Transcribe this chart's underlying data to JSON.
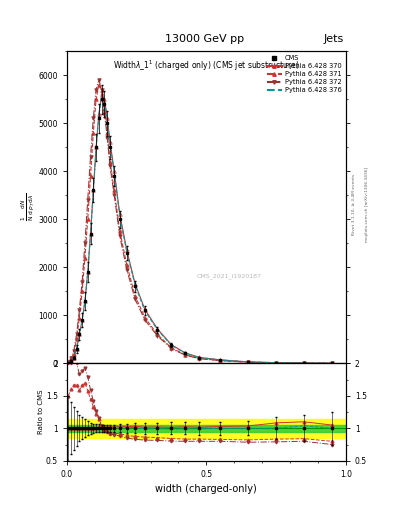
{
  "title_top": "13000 GeV pp",
  "title_right": "Jets",
  "plot_title": "Widthλ_1¹ (charged only) (CMS jet substructure)",
  "xlabel": "width (charged-only)",
  "ylabel_ratio": "Ratio to CMS",
  "right_label_1": "Rivet 3.1.10, ≥ 3.4M events",
  "right_label_2": "mcplots.cern.ch [arXiv:1306.3436]",
  "watermark": "CMS_2021_I1920187",
  "x_bins": [
    0.0,
    0.01,
    0.02,
    0.03,
    0.04,
    0.05,
    0.06,
    0.07,
    0.08,
    0.09,
    0.1,
    0.11,
    0.12,
    0.13,
    0.14,
    0.15,
    0.16,
    0.18,
    0.2,
    0.23,
    0.26,
    0.3,
    0.35,
    0.4,
    0.45,
    0.5,
    0.6,
    0.7,
    0.8,
    0.9,
    1.0
  ],
  "cms_values": [
    10,
    50,
    120,
    300,
    600,
    900,
    1300,
    1900,
    2700,
    3600,
    4500,
    5100,
    5500,
    5400,
    5000,
    4500,
    3900,
    3000,
    2300,
    1600,
    1100,
    700,
    380,
    210,
    120,
    70,
    28,
    12,
    5,
    2
  ],
  "cms_errors": [
    5,
    20,
    40,
    80,
    120,
    150,
    180,
    200,
    220,
    250,
    280,
    300,
    300,
    280,
    260,
    240,
    210,
    180,
    150,
    120,
    90,
    60,
    35,
    20,
    12,
    7,
    3,
    2,
    1,
    0.5
  ],
  "py370_values": [
    10,
    50,
    120,
    300,
    600,
    900,
    1300,
    1900,
    2700,
    3600,
    4500,
    5200,
    5600,
    5500,
    5100,
    4600,
    4000,
    3100,
    2350,
    1650,
    1120,
    715,
    385,
    215,
    122,
    72,
    29,
    13,
    5.5,
    2.1
  ],
  "py371_values": [
    15,
    80,
    200,
    500,
    950,
    1500,
    2200,
    3000,
    3900,
    4800,
    5500,
    5800,
    5700,
    5300,
    4800,
    4200,
    3600,
    2750,
    2050,
    1400,
    950,
    600,
    320,
    175,
    100,
    58,
    23,
    10,
    4.2,
    1.6
  ],
  "py372_values": [
    20,
    100,
    250,
    600,
    1100,
    1700,
    2500,
    3400,
    4300,
    5100,
    5700,
    5900,
    5700,
    5200,
    4700,
    4100,
    3500,
    2650,
    1950,
    1330,
    900,
    570,
    305,
    168,
    96,
    56,
    22,
    9.5,
    4.0,
    1.5
  ],
  "py376_values": [
    10,
    50,
    118,
    295,
    592,
    890,
    1290,
    1880,
    2680,
    3580,
    4480,
    5150,
    5560,
    5470,
    5070,
    4560,
    3960,
    3060,
    2320,
    1620,
    1090,
    695,
    375,
    208,
    119,
    70,
    28,
    12,
    5.2,
    2.0
  ],
  "ylim_main": [
    0,
    6500
  ],
  "ylim_ratio": [
    0.5,
    2.0
  ],
  "xlim": [
    0.0,
    1.0
  ],
  "ratio_green_band": 0.05,
  "ratio_yellow_band": 0.15,
  "yticks_main": [
    0,
    1000,
    2000,
    3000,
    4000,
    5000,
    6000
  ],
  "ytick_labels_main": [
    "0",
    "1000",
    "2000",
    "3000",
    "4000",
    "5000",
    "6000"
  ]
}
